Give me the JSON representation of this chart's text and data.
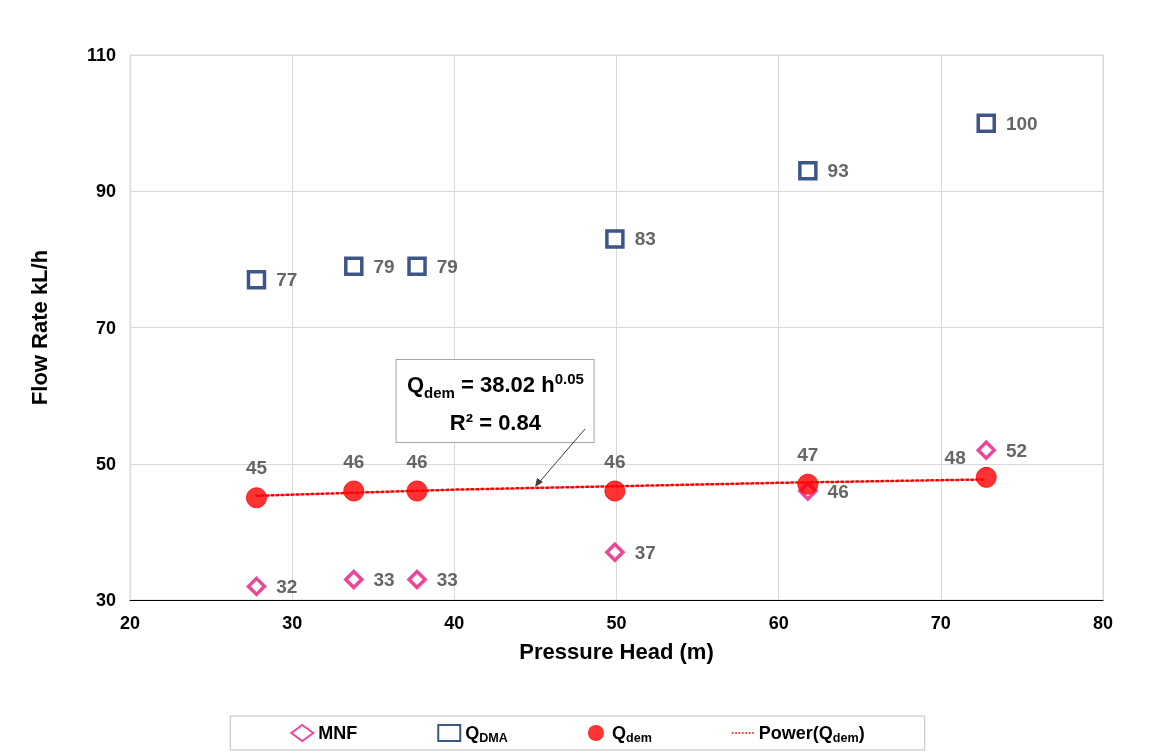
{
  "chart_data": {
    "type": "scatter",
    "xlabel": "Pressure Head (m)",
    "ylabel": "Flow Rate kL/h",
    "x": [
      27.8,
      33.8,
      37.7,
      49.9,
      61.8,
      72.8
    ],
    "series": [
      {
        "name": "MNF",
        "color": "#e6197e",
        "marker": "diamond",
        "values": [
          32,
          33,
          33,
          37,
          46,
          52
        ],
        "value_labels": [
          "32",
          "33",
          "33",
          "37",
          "46",
          "52"
        ]
      },
      {
        "name": "Q$_{DMA}$",
        "color": "#0d2a6b",
        "marker": "square",
        "values": [
          77,
          79,
          79,
          83,
          93,
          100
        ],
        "value_labels": [
          "77",
          "79",
          "79",
          "83",
          "93",
          "100"
        ]
      },
      {
        "name": "Q$_{dem}$",
        "color": "#ff0000",
        "marker": "circle",
        "values": [
          45,
          46,
          46,
          46,
          47,
          48
        ],
        "value_labels": [
          "45",
          "46",
          "46",
          "46",
          "47",
          "48"
        ]
      },
      {
        "name": "Power(Q$_{dem}$)",
        "type": "line",
        "color": "#ff0000",
        "line_style": "dotted",
        "marker": "none",
        "x": [
          27.8,
          40,
          50,
          60,
          72.8
        ],
        "values": [
          45.3,
          46.2,
          46.7,
          47.2,
          47.7
        ]
      }
    ],
    "annotations": [
      {
        "text": "Q$_{dem}$ = 38.02 h$^{0.05}$",
        "x": 45,
        "y": 46.6
      },
      "R² = 0.84"
    ],
    "xlim": [
      20,
      80
    ],
    "xticks": [
      20,
      30,
      40,
      50,
      60,
      70,
      80
    ],
    "ylim": [
      30,
      110
    ],
    "yticks": [
      30,
      50,
      70,
      90,
      110
    ],
    "grid": true,
    "legend": "bottom"
  }
}
